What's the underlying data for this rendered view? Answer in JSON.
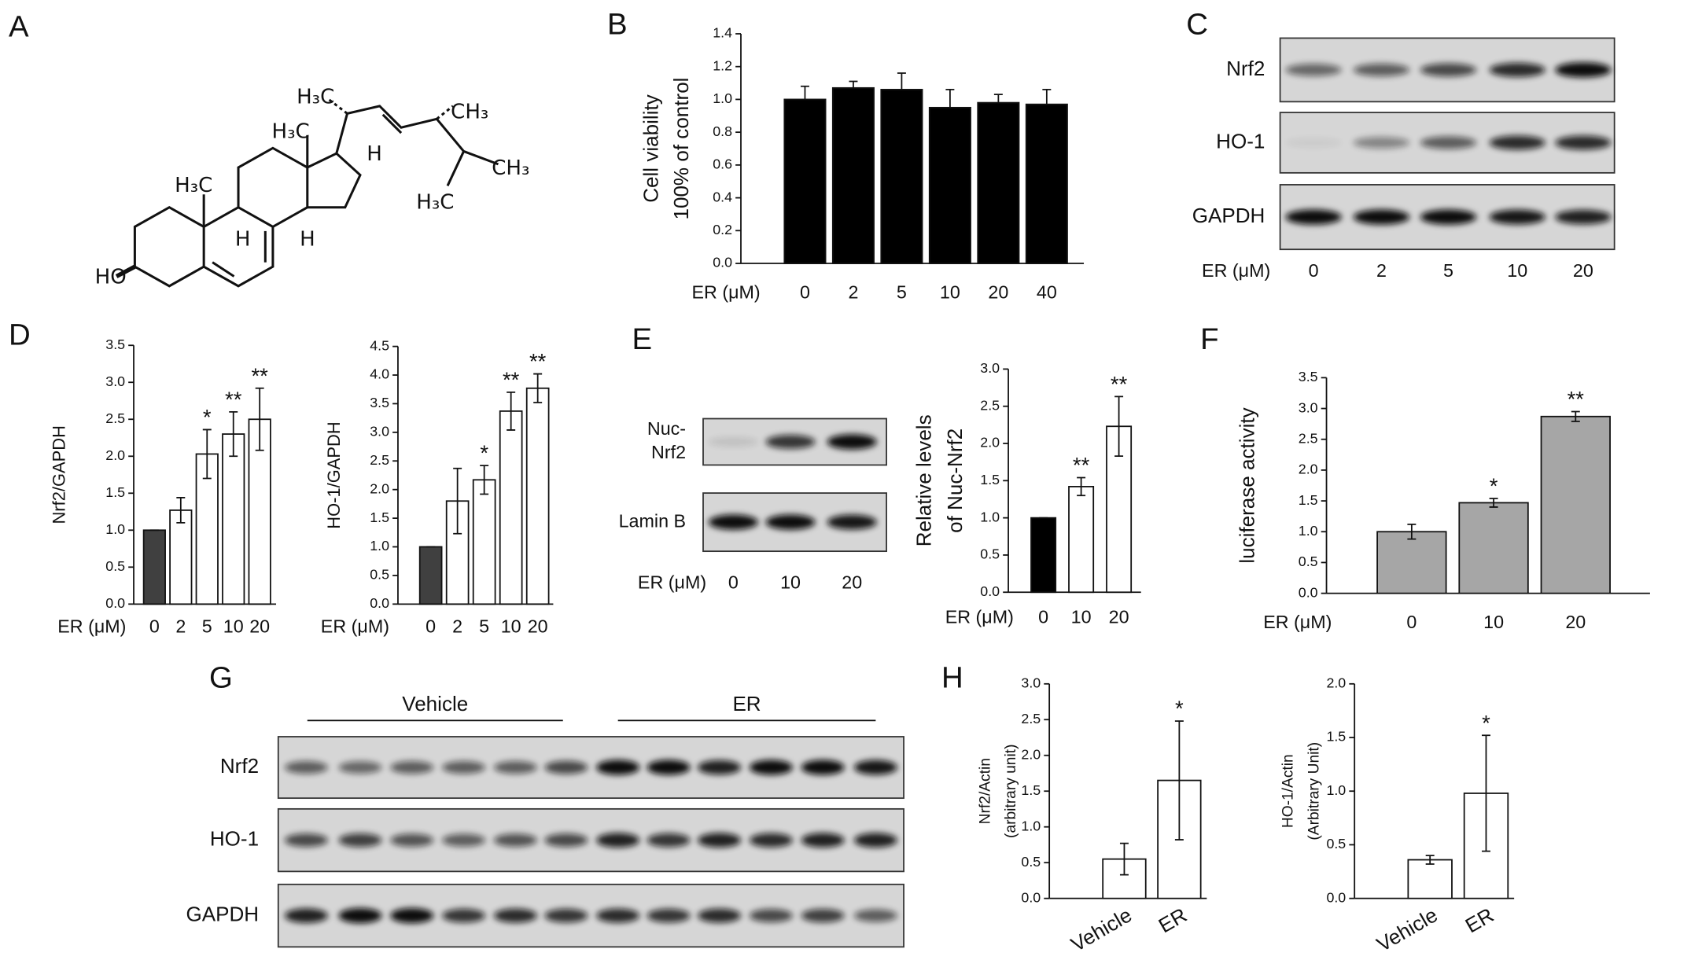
{
  "panels": [
    "A",
    "B",
    "C",
    "D",
    "E",
    "F",
    "G",
    "H"
  ],
  "structure": {
    "labels": [
      "H₃C",
      "H₃C",
      "CH₃",
      "H",
      "CH₃",
      "H₃C",
      "H₃C",
      "H",
      "H",
      "HO"
    ]
  },
  "blot_c": {
    "rows": [
      [
        "Nrf2"
      ],
      [
        "HO-1"
      ],
      [
        "GAPDH"
      ]
    ],
    "xlabel": "ER (μM)",
    "lanes": [
      "0",
      "2",
      "5",
      "10",
      "20"
    ]
  },
  "blot_e": {
    "rows": [
      [
        "Nuc-",
        "Nrf2"
      ],
      [
        "Lamin B"
      ]
    ],
    "xlabel": "ER (μM)",
    "lanes": [
      "0",
      "10",
      "20"
    ]
  },
  "blot_g": {
    "groups": [
      "Vehicle",
      "ER"
    ],
    "rows": [
      [
        "Nrf2"
      ],
      [
        "HO-1"
      ],
      [
        "GAPDH"
      ]
    ]
  },
  "chart_data": [
    {
      "type": "bar",
      "ylabel": [
        "Cell viability",
        "100% of control"
      ],
      "xlabel": "ER (μM)",
      "categories": [
        "0",
        "2",
        "5",
        "10",
        "20",
        "40"
      ],
      "values": [
        1.0,
        1.07,
        1.06,
        0.95,
        0.98,
        0.97
      ],
      "errors": [
        0.08,
        0.04,
        0.1,
        0.11,
        0.05,
        0.09
      ],
      "colors": [
        "#000000",
        "#000000",
        "#000000",
        "#000000",
        "#000000",
        "#000000"
      ],
      "ylim": [
        0,
        1.4
      ],
      "yticks": [
        {
          "value": 0,
          "label": "0.0"
        },
        0.2,
        0.4,
        0.6,
        0.8,
        {
          "value": 1,
          "label": "1.0"
        },
        1.2,
        1.4
      ]
    },
    {
      "type": "bar",
      "ylabel": [
        "Nrf2/GAPDH"
      ],
      "xlabel": "ER (μM)",
      "categories": [
        "0",
        "2",
        "5",
        "10",
        "20"
      ],
      "values": [
        1.0,
        1.27,
        2.03,
        2.3,
        2.5
      ],
      "errors": [
        0,
        0.17,
        0.33,
        0.3,
        0.42
      ],
      "colors": [
        "#404040",
        "#ffffff",
        "#ffffff",
        "#ffffff",
        "#ffffff"
      ],
      "annotations": [
        null,
        null,
        "*",
        "**",
        "**"
      ],
      "ylim": [
        0,
        3.5
      ],
      "yticks": [
        {
          "value": 0,
          "label": "0.0"
        },
        0.5,
        {
          "value": 1,
          "label": "1.0"
        },
        1.5,
        {
          "value": 2,
          "label": "2.0"
        },
        2.5,
        {
          "value": 3,
          "label": "3.0"
        },
        3.5
      ]
    },
    {
      "type": "bar",
      "ylabel": [
        "HO-1/GAPDH"
      ],
      "xlabel": "ER (μM)",
      "categories": [
        "0",
        "2",
        "5",
        "10",
        "20"
      ],
      "values": [
        1.0,
        1.8,
        2.17,
        3.37,
        3.77
      ],
      "errors": [
        0,
        0.57,
        0.25,
        0.33,
        0.25
      ],
      "colors": [
        "#404040",
        "#ffffff",
        "#ffffff",
        "#ffffff",
        "#ffffff"
      ],
      "annotations": [
        null,
        null,
        "*",
        "**",
        "**"
      ],
      "ylim": [
        0,
        4.5
      ],
      "yticks": [
        {
          "value": 0,
          "label": "0.0"
        },
        0.5,
        {
          "value": 1,
          "label": "1.0"
        },
        1.5,
        {
          "value": 2,
          "label": "2.0"
        },
        2.5,
        {
          "value": 3,
          "label": "3.0"
        },
        3.5,
        {
          "value": 4,
          "label": "4.0"
        },
        4.5
      ]
    },
    {
      "type": "bar",
      "ylabel": [
        "Relative levels",
        "of Nuc-Nrf2"
      ],
      "xlabel": "ER (μM)",
      "categories": [
        "0",
        "10",
        "20"
      ],
      "values": [
        1.0,
        1.42,
        2.23
      ],
      "errors": [
        0,
        0.12,
        0.4
      ],
      "colors": [
        "#000000",
        "#ffffff",
        "#ffffff"
      ],
      "annotations": [
        null,
        "**",
        "**"
      ],
      "ylim": [
        0,
        3
      ],
      "yticks": [
        {
          "value": 0,
          "label": "0.0"
        },
        0.5,
        {
          "value": 1,
          "label": "1.0"
        },
        1.5,
        {
          "value": 2,
          "label": "2.0"
        },
        2.5,
        {
          "value": 3,
          "label": "3.0"
        }
      ]
    },
    {
      "type": "bar",
      "ylabel": [
        "luciferase activity"
      ],
      "xlabel": "ER (μM)",
      "categories": [
        "0",
        "10",
        "20"
      ],
      "values": [
        1.0,
        1.47,
        2.87
      ],
      "errors": [
        0.12,
        0.07,
        0.08
      ],
      "colors": [
        "#a6a6a6",
        "#a6a6a6",
        "#a6a6a6"
      ],
      "annotations": [
        null,
        "*",
        "**"
      ],
      "ylim": [
        0,
        3.5
      ],
      "yticks": [
        {
          "value": 0,
          "label": "0.0"
        },
        0.5,
        {
          "value": 1,
          "label": "1.0"
        },
        1.5,
        {
          "value": 2,
          "label": "2.0"
        },
        2.5,
        {
          "value": 3,
          "label": "3.0"
        },
        3.5
      ]
    },
    {
      "type": "bar",
      "ylabel": [
        "Nrf2/Actin",
        "(arbitrary unit)"
      ],
      "categories": [
        "Vehicle",
        "ER"
      ],
      "values": [
        0.55,
        1.65
      ],
      "errors": [
        0.22,
        0.83
      ],
      "colors": [
        "#ffffff",
        "#ffffff"
      ],
      "annotations": [
        null,
        "*"
      ],
      "ylim": [
        0,
        3
      ],
      "yticks": [
        {
          "value": 0,
          "label": "0.0"
        },
        0.5,
        {
          "value": 1,
          "label": "1.0"
        },
        1.5,
        {
          "value": 2,
          "label": "2.0"
        },
        2.5,
        {
          "value": 3,
          "label": "3.0"
        }
      ]
    },
    {
      "type": "bar",
      "ylabel": [
        "HO-1/Actin",
        "(Arbitrary Unit)"
      ],
      "categories": [
        "Vehicle",
        "ER"
      ],
      "values": [
        0.36,
        0.98
      ],
      "errors": [
        0.04,
        0.54
      ],
      "colors": [
        "#ffffff",
        "#ffffff"
      ],
      "annotations": [
        null,
        "*"
      ],
      "ylim": [
        0,
        2
      ],
      "yticks": [
        {
          "value": 0,
          "label": "0.0"
        },
        0.5,
        {
          "value": 1,
          "label": "1.0"
        },
        1.5,
        {
          "value": 2,
          "label": "2.0"
        }
      ]
    }
  ]
}
